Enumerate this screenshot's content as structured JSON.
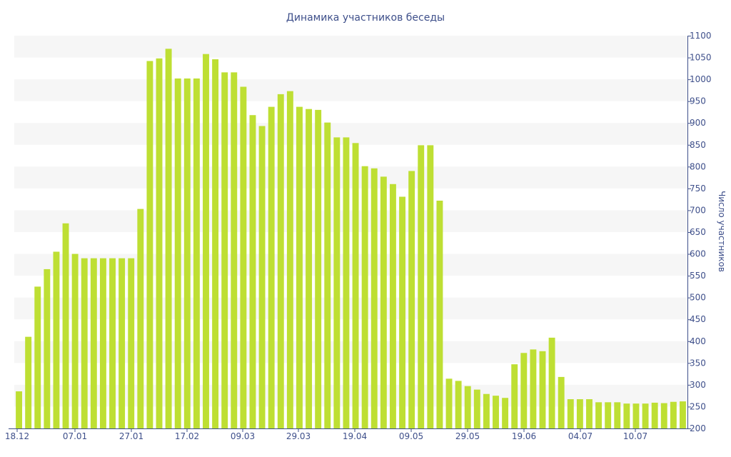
{
  "chart_data": {
    "type": "bar",
    "title": "Динамика участников беседы",
    "ylabel": "Число участников",
    "xlabel": "",
    "ylim": [
      200,
      1100
    ],
    "y_ticks": [
      200,
      250,
      300,
      350,
      400,
      450,
      500,
      550,
      600,
      650,
      700,
      750,
      800,
      850,
      900,
      950,
      1000,
      1050,
      1100
    ],
    "x_tick_labels": [
      "18.12",
      "07.01",
      "27.01",
      "17.02",
      "09.03",
      "29.03",
      "19.04",
      "09.05",
      "29.05",
      "19.06",
      "04.07",
      "10.07"
    ],
    "y_axis_position": "right",
    "grid": "alternating horizontal bands",
    "colors": {
      "bar": "#bedf33",
      "text": "#3e4f8a",
      "band": "#f6f6f6"
    },
    "values": [
      285,
      410,
      525,
      565,
      605,
      670,
      600,
      590,
      590,
      590,
      590,
      590,
      590,
      703,
      1042,
      1048,
      1070,
      1002,
      1002,
      1002,
      1058,
      1046,
      1016,
      1016,
      983,
      918,
      893,
      937,
      966,
      973,
      937,
      932,
      930,
      901,
      867,
      867,
      854,
      801,
      796,
      777,
      760,
      731,
      790,
      849,
      849,
      722,
      314,
      309,
      297,
      289,
      279,
      275,
      270,
      347,
      373,
      381,
      377,
      408,
      318,
      267,
      267,
      267,
      260,
      260,
      260,
      257,
      257,
      257,
      259,
      258,
      261,
      262
    ]
  }
}
